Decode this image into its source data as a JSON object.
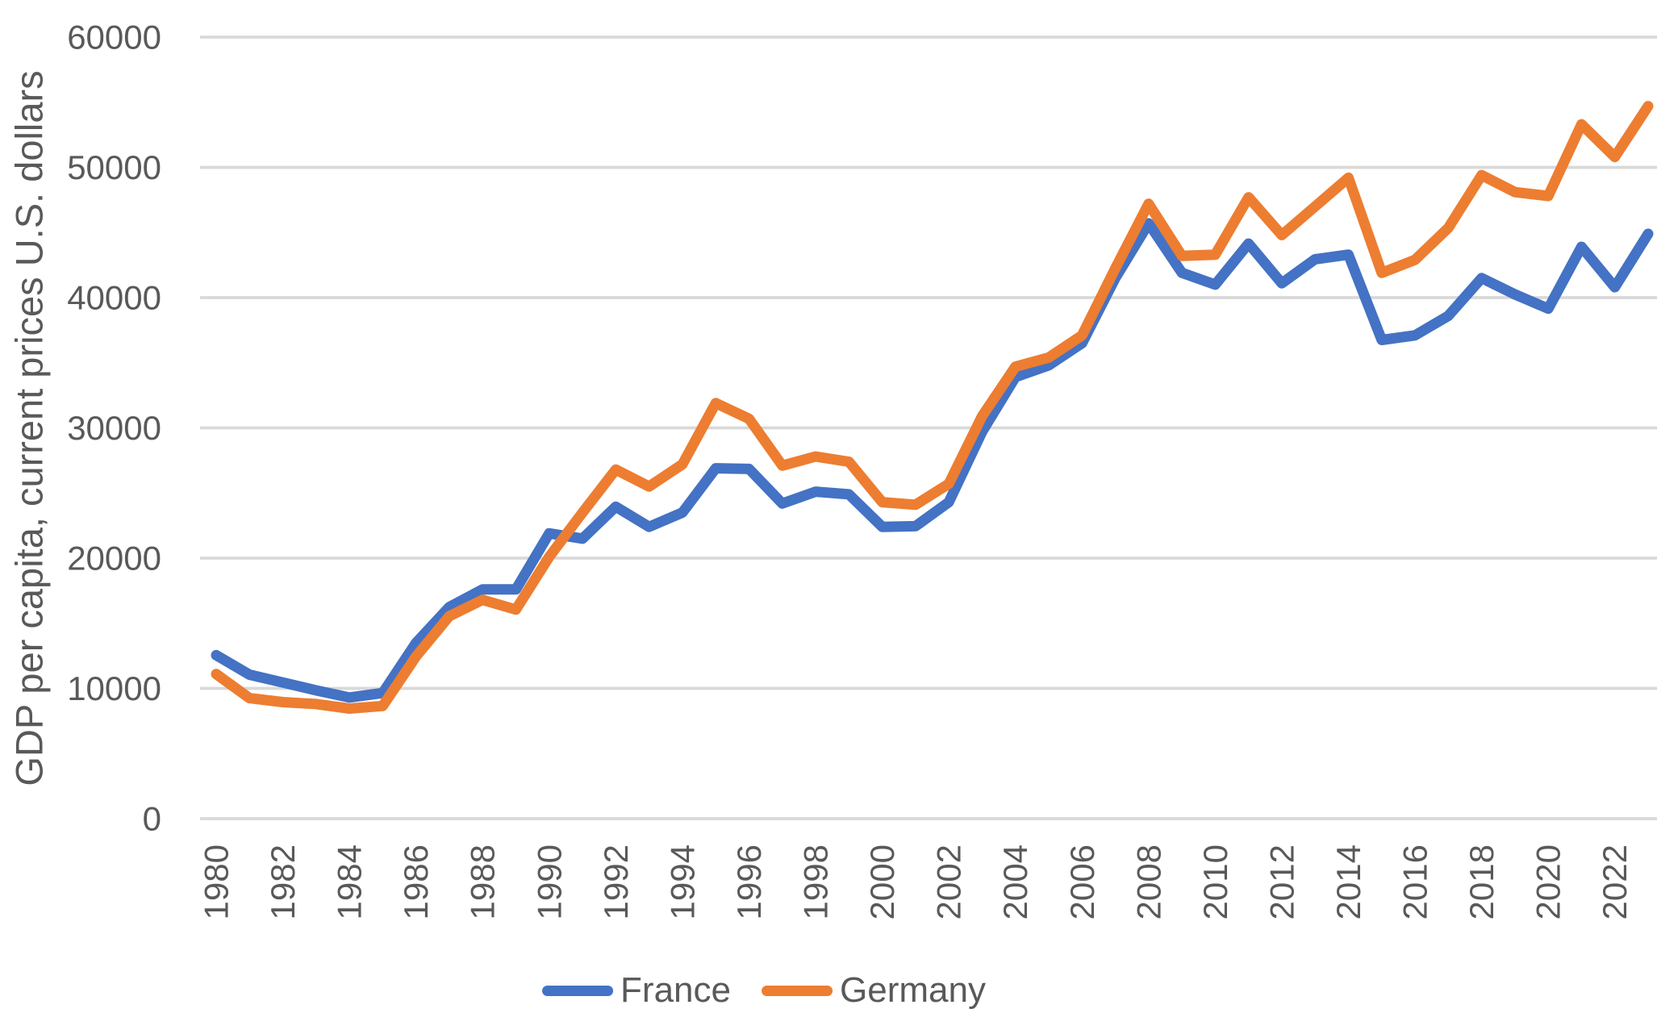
{
  "chart_data": {
    "type": "line",
    "title": "",
    "xlabel": "",
    "ylabel": "GDP per capita, current prices U.S. dollars",
    "ylim": [
      0,
      60000
    ],
    "ytick_step": 10000,
    "ytick_labels": [
      "0",
      "10000",
      "20000",
      "30000",
      "40000",
      "50000",
      "60000"
    ],
    "xtick_labels": [
      "1980",
      "1982",
      "1984",
      "1986",
      "1988",
      "1990",
      "1992",
      "1994",
      "1996",
      "1998",
      "2000",
      "2002",
      "2004",
      "2006",
      "2008",
      "2010",
      "2012",
      "2014",
      "2016",
      "2018",
      "2020",
      "2022"
    ],
    "grid": "horizontal",
    "legend_position": "bottom",
    "x": [
      1980,
      1981,
      1982,
      1983,
      1984,
      1985,
      1986,
      1987,
      1988,
      1989,
      1990,
      1991,
      1992,
      1993,
      1994,
      1995,
      1996,
      1997,
      1998,
      1999,
      2000,
      2001,
      2002,
      2003,
      2004,
      2005,
      2006,
      2007,
      2008,
      2009,
      2010,
      2011,
      2012,
      2013,
      2014,
      2015,
      2016,
      2017,
      2018,
      2019,
      2020,
      2021,
      2022,
      2023
    ],
    "series": [
      {
        "name": "France",
        "color": "#4472C4",
        "values": [
          12550,
          11050,
          10450,
          9850,
          9300,
          9650,
          13500,
          16250,
          17600,
          17600,
          21900,
          21500,
          23950,
          22400,
          23500,
          26900,
          26850,
          24200,
          25100,
          24900,
          22400,
          22450,
          24300,
          29700,
          33900,
          34800,
          36500,
          41500,
          45700,
          41900,
          41000,
          44150,
          41100,
          42950,
          43300,
          36750,
          37100,
          38600,
          41500,
          40250,
          39150,
          43900,
          40800,
          44900
        ]
      },
      {
        "name": "Germany",
        "color": "#ED7D31",
        "values": [
          11100,
          9250,
          8950,
          8800,
          8450,
          8650,
          12450,
          15550,
          16800,
          16050,
          20100,
          23500,
          26800,
          25500,
          27200,
          31900,
          30700,
          27100,
          27800,
          27400,
          24300,
          24100,
          25700,
          30900,
          34700,
          35400,
          37100,
          42250,
          47200,
          43200,
          43300,
          47700,
          44800,
          47000,
          49200,
          41900,
          42900,
          45350,
          49400,
          48100,
          47800,
          53300,
          50800,
          54700
        ]
      }
    ]
  },
  "style_colors": {
    "gridline": "#D9D9D9",
    "tick_label": "#595959",
    "axis_title": "#595959",
    "legend_text": "#595959"
  }
}
